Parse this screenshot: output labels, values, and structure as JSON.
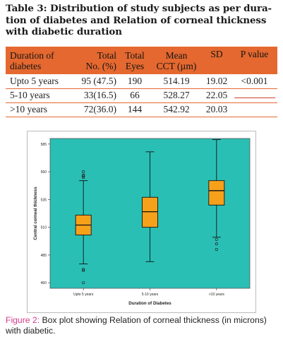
{
  "table": {
    "title": "Table 3: Distribution of study subjects as per duration of diabetes and Relation of corneal thickness with diabetic duration",
    "title_lines": [
      "Table 3: Distribution of study subjects as per dura-",
      "tion of diabetes and Relation of corneal thickness",
      "with diabetic duration"
    ],
    "header_color": "#e4682f",
    "headers": {
      "c1": [
        "Duration of",
        "diabetes"
      ],
      "c2": [
        "Total",
        "No. (%)"
      ],
      "c3": [
        "Total",
        "Eyes"
      ],
      "c4": [
        "Mean",
        "CCT (µm)"
      ],
      "c5": [
        "SD",
        ""
      ],
      "c6": [
        "P value",
        ""
      ]
    },
    "rows": [
      {
        "duration": "Upto 5 years",
        "total_no": "95 (47.5)",
        "eyes": "190",
        "mean_cct": "514.19",
        "sd": "19.02",
        "p": "<0.001"
      },
      {
        "duration": "5-10 years",
        "total_no": "33(16.5)",
        "eyes": "66",
        "mean_cct": "528.27",
        "sd": "22.05",
        "p": ""
      },
      {
        "duration": ">10 years",
        "total_no": "72(36.0)",
        "eyes": "144",
        "mean_cct": "542.92",
        "sd": "20.03",
        "p": ""
      }
    ]
  },
  "chart_data": {
    "type": "box",
    "xlabel": "Duration of Diabetes",
    "ylabel": "Central corneal thickness",
    "categories": [
      "Upto 5 years",
      "5-10 years",
      ">10 years"
    ],
    "y_ticks": [
      460,
      485,
      510,
      535,
      560,
      585
    ],
    "ylim": [
      455,
      590
    ],
    "plot_background": "#2abfb5",
    "box_color": "#f7a11b",
    "boxes": [
      {
        "category": "Upto 5 years",
        "whisker_low": 477,
        "q1": 503,
        "median": 512,
        "q3": 521,
        "whisker_high": 552,
        "outliers": [
          460,
          471,
          472,
          555,
          556,
          557,
          560
        ]
      },
      {
        "category": "5-10 years",
        "whisker_low": 479,
        "q1": 510,
        "median": 524,
        "q3": 537,
        "whisker_high": 578,
        "outliers": []
      },
      {
        "category": ">10 years",
        "whisker_low": 501,
        "q1": 530,
        "median": 543,
        "q3": 552,
        "whisker_high": 589,
        "outliers": [
          490,
          495,
          499
        ]
      }
    ]
  },
  "caption": {
    "lead": "Figure 2:",
    "text": " Box plot showing Relation of corneal thickness (in microns) with diabetic."
  }
}
